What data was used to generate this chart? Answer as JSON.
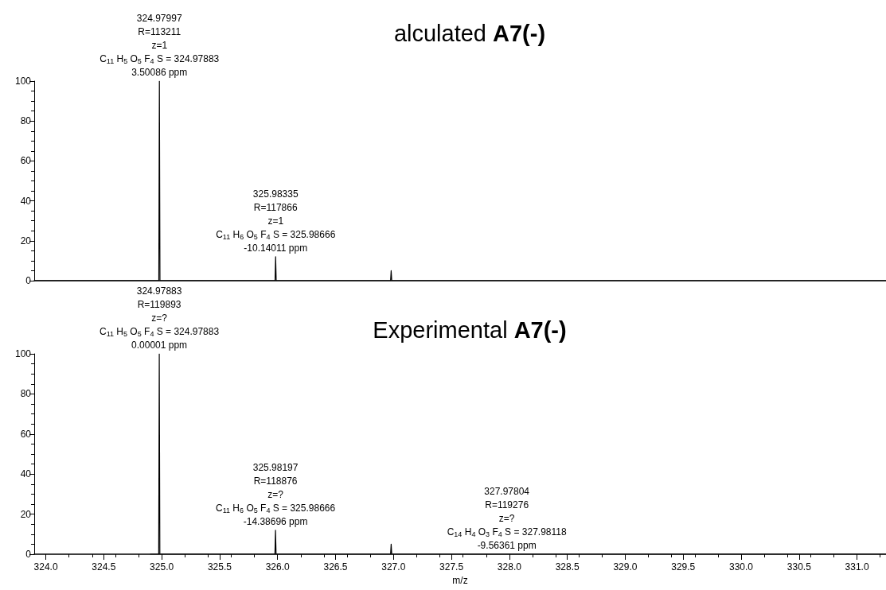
{
  "chart_data": [
    {
      "type": "line",
      "title": "alculated A7(-)",
      "color": "#000000",
      "grid": false,
      "marker": "none",
      "tick_labels": "y",
      "x": [
        323.9,
        324.975,
        324.98,
        324.985,
        325.978,
        325.983,
        325.988,
        326.975,
        326.98,
        326.985,
        331.25
      ],
      "values": [
        0,
        0,
        100,
        0,
        0,
        12,
        0,
        0,
        5,
        0,
        0
      ],
      "xlim": [
        323.9,
        331.25
      ],
      "ylim": [
        0,
        100
      ],
      "yticks": [
        0,
        20,
        40,
        60,
        80,
        100
      ],
      "annotations": [
        "324.97997",
        "R=113211",
        "z=1",
        "C$_{11}$ H$_{5}$ O$_{5}$ F$_{4}$ S = 324.97883",
        {
          "text": "3.50086 ppm",
          "x": 324.98,
          "y": 100
        },
        "325.98335",
        "R=117866",
        "z=1",
        "C$_{11}$ H$_{6}$ O$_{5}$ F$_{4}$ S = 325.98666",
        {
          "text": "-10.14011 ppm",
          "x": 325.983,
          "y": 12
        }
      ]
    },
    {
      "type": "line",
      "title": "Experimental A7(-)",
      "xlabel": "m/z",
      "color": "#000000",
      "grid": false,
      "marker": "none",
      "x": [
        324.9,
        324.974,
        324.979,
        324.984,
        325.977,
        325.982,
        325.987,
        326.975,
        326.98,
        326.985,
        331.25
      ],
      "values": [
        0,
        0,
        100,
        0,
        0,
        12,
        0,
        0,
        5,
        0,
        0
      ],
      "xlim": [
        323.9,
        331.25
      ],
      "xticks": [
        {
          "value": 324,
          "label": "324.0"
        },
        324.5,
        {
          "value": 325,
          "label": "325.0"
        },
        325.5,
        {
          "value": 326,
          "label": "326.0"
        },
        326.5,
        {
          "value": 327,
          "label": "327.0"
        },
        327.5,
        {
          "value": 328,
          "label": "328.0"
        },
        328.5,
        {
          "value": 329,
          "label": "329.0"
        },
        329.5,
        {
          "value": 330,
          "label": "330.0"
        },
        330.5,
        {
          "value": 331,
          "label": "331.0"
        }
      ],
      "ylim": [
        0,
        100
      ],
      "yticks": [
        0,
        20,
        40,
        60,
        80,
        100
      ],
      "annotations": [
        "324.97883",
        "R=119893",
        "z=?",
        "C$_{11}$ H$_{5}$ O$_{5}$ F$_{4}$ S = 324.97883",
        {
          "text": "0.00001 ppm",
          "x": 324.979,
          "y": 100
        },
        "325.98197",
        "R=118876",
        "z=?",
        "C$_{11}$ H$_{6}$ O$_{5}$ F$_{4}$ S = 325.98666",
        {
          "text": "-14.38696 ppm",
          "x": 325.982,
          "y": 12
        },
        "327.97804",
        "R=119276",
        "z=?",
        "C$_{14}$ H$_{4}$ O$_{3}$ F$_{4}$ S = 327.98118",
        {
          "text": "-9.56361 ppm",
          "x": 327.978,
          "y": 0
        }
      ]
    }
  ]
}
